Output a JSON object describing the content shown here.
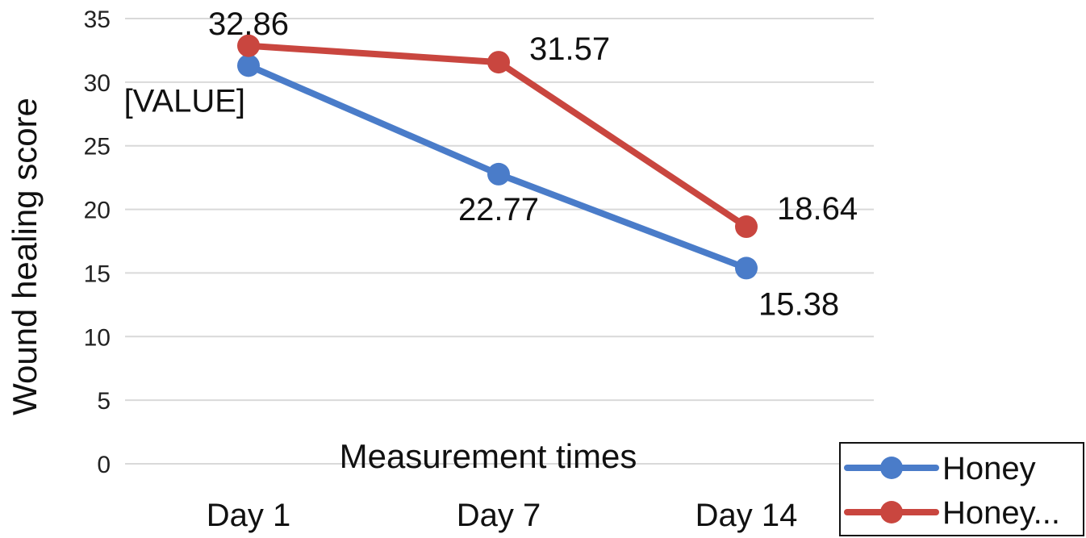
{
  "chart_data": {
    "type": "line",
    "categories": [
      "Day 1",
      "Day 7",
      "Day 14"
    ],
    "series": [
      {
        "name": "Honey",
        "color": "#4a7cc9",
        "values": [
          31.3,
          22.77,
          15.38
        ],
        "labels": [
          "[VALUE]",
          "22.77",
          "15.38"
        ]
      },
      {
        "name": "Honey...",
        "color": "#c9463f",
        "values": [
          32.86,
          31.57,
          18.64
        ],
        "labels": [
          "32.86",
          "31.57",
          "18.64"
        ]
      }
    ],
    "xlabel": "Measurement times",
    "ylabel": "Wound healing score",
    "ylim": [
      0,
      35
    ],
    "yticks": [
      "0",
      "5",
      "10",
      "15",
      "20",
      "25",
      "30",
      "35"
    ],
    "grid": true,
    "legend_position": "bottom-right"
  }
}
